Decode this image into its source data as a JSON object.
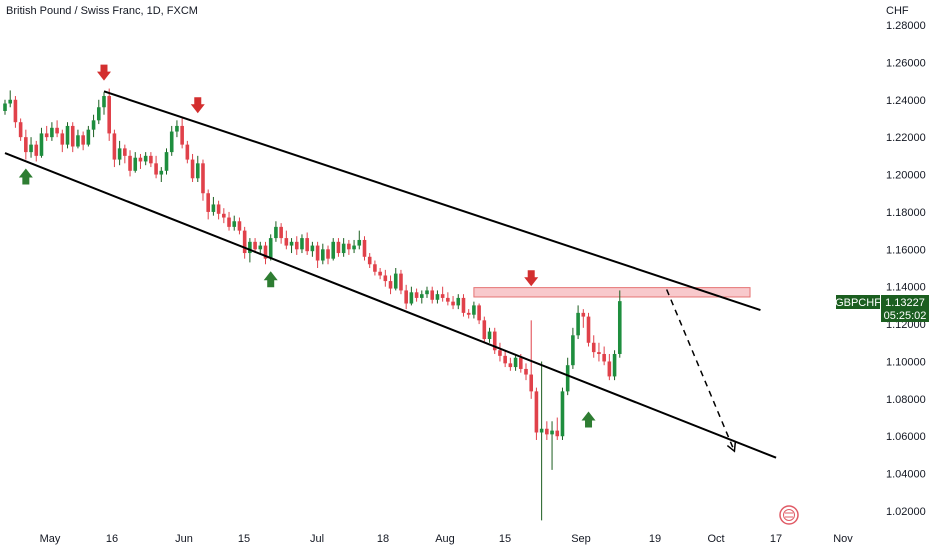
{
  "chart_title": "British Pound / Swiss Franc, 1D, FXCM",
  "chart_data": {
    "type": "candlestick",
    "title": "British Pound / Swiss Franc, 1D, FXCM",
    "price_unit": "CHF",
    "ylim": [
      1.01,
      1.29
    ],
    "y_ticks": [
      "1.28000",
      "1.26000",
      "1.24000",
      "1.22000",
      "1.20000",
      "1.18000",
      "1.16000",
      "1.14000",
      "1.12000",
      "1.10000",
      "1.08000",
      "1.06000",
      "1.04000",
      "1.02000"
    ],
    "x_ticks": [
      "May",
      "16",
      "Jun",
      "15",
      "Jul",
      "18",
      "Aug",
      "15",
      "Sep",
      "19",
      "Oct",
      "17",
      "Nov"
    ],
    "colors": {
      "up": "#26a69a",
      "down": "#ef5350",
      "up_wick": "#1b5e20",
      "arrow_up": "#2e7d32",
      "arrow_down": "#d32f2f",
      "zone": "#f8c9cc",
      "badge": "#1b5e20"
    },
    "candles": [
      {
        "o": 1.234,
        "h": 1.24,
        "l": 1.232,
        "c": 1.238
      },
      {
        "o": 1.238,
        "h": 1.245,
        "l": 1.236,
        "c": 1.24
      },
      {
        "o": 1.24,
        "h": 1.242,
        "l": 1.225,
        "c": 1.228
      },
      {
        "o": 1.228,
        "h": 1.23,
        "l": 1.218,
        "c": 1.22
      },
      {
        "o": 1.22,
        "h": 1.224,
        "l": 1.208,
        "c": 1.212
      },
      {
        "o": 1.212,
        "h": 1.22,
        "l": 1.209,
        "c": 1.216
      },
      {
        "o": 1.216,
        "h": 1.218,
        "l": 1.207,
        "c": 1.21
      },
      {
        "o": 1.21,
        "h": 1.225,
        "l": 1.209,
        "c": 1.222
      },
      {
        "o": 1.222,
        "h": 1.226,
        "l": 1.218,
        "c": 1.22
      },
      {
        "o": 1.22,
        "h": 1.228,
        "l": 1.218,
        "c": 1.225
      },
      {
        "o": 1.225,
        "h": 1.229,
        "l": 1.22,
        "c": 1.222
      },
      {
        "o": 1.222,
        "h": 1.224,
        "l": 1.212,
        "c": 1.216
      },
      {
        "o": 1.216,
        "h": 1.228,
        "l": 1.214,
        "c": 1.226
      },
      {
        "o": 1.226,
        "h": 1.228,
        "l": 1.212,
        "c": 1.215
      },
      {
        "o": 1.215,
        "h": 1.224,
        "l": 1.214,
        "c": 1.221
      },
      {
        "o": 1.221,
        "h": 1.223,
        "l": 1.213,
        "c": 1.216
      },
      {
        "o": 1.216,
        "h": 1.226,
        "l": 1.215,
        "c": 1.224
      },
      {
        "o": 1.224,
        "h": 1.232,
        "l": 1.22,
        "c": 1.229
      },
      {
        "o": 1.229,
        "h": 1.24,
        "l": 1.227,
        "c": 1.236
      },
      {
        "o": 1.236,
        "h": 1.244,
        "l": 1.232,
        "c": 1.242
      },
      {
        "o": 1.242,
        "h": 1.246,
        "l": 1.218,
        "c": 1.222
      },
      {
        "o": 1.222,
        "h": 1.224,
        "l": 1.204,
        "c": 1.208
      },
      {
        "o": 1.208,
        "h": 1.218,
        "l": 1.205,
        "c": 1.214
      },
      {
        "o": 1.214,
        "h": 1.216,
        "l": 1.206,
        "c": 1.21
      },
      {
        "o": 1.21,
        "h": 1.213,
        "l": 1.199,
        "c": 1.202
      },
      {
        "o": 1.202,
        "h": 1.212,
        "l": 1.201,
        "c": 1.209
      },
      {
        "o": 1.209,
        "h": 1.211,
        "l": 1.203,
        "c": 1.207
      },
      {
        "o": 1.207,
        "h": 1.212,
        "l": 1.205,
        "c": 1.21
      },
      {
        "o": 1.21,
        "h": 1.212,
        "l": 1.204,
        "c": 1.206
      },
      {
        "o": 1.206,
        "h": 1.21,
        "l": 1.198,
        "c": 1.2
      },
      {
        "o": 1.2,
        "h": 1.204,
        "l": 1.196,
        "c": 1.202
      },
      {
        "o": 1.202,
        "h": 1.214,
        "l": 1.2,
        "c": 1.212
      },
      {
        "o": 1.212,
        "h": 1.226,
        "l": 1.21,
        "c": 1.223
      },
      {
        "o": 1.223,
        "h": 1.229,
        "l": 1.22,
        "c": 1.226
      },
      {
        "o": 1.226,
        "h": 1.23,
        "l": 1.214,
        "c": 1.216
      },
      {
        "o": 1.216,
        "h": 1.218,
        "l": 1.206,
        "c": 1.208
      },
      {
        "o": 1.208,
        "h": 1.211,
        "l": 1.196,
        "c": 1.198
      },
      {
        "o": 1.198,
        "h": 1.21,
        "l": 1.196,
        "c": 1.206
      },
      {
        "o": 1.206,
        "h": 1.208,
        "l": 1.186,
        "c": 1.19
      },
      {
        "o": 1.19,
        "h": 1.192,
        "l": 1.176,
        "c": 1.18
      },
      {
        "o": 1.18,
        "h": 1.188,
        "l": 1.178,
        "c": 1.184
      },
      {
        "o": 1.184,
        "h": 1.186,
        "l": 1.176,
        "c": 1.179
      },
      {
        "o": 1.179,
        "h": 1.182,
        "l": 1.174,
        "c": 1.177
      },
      {
        "o": 1.177,
        "h": 1.18,
        "l": 1.17,
        "c": 1.172
      },
      {
        "o": 1.172,
        "h": 1.178,
        "l": 1.17,
        "c": 1.175
      },
      {
        "o": 1.175,
        "h": 1.177,
        "l": 1.168,
        "c": 1.17
      },
      {
        "o": 1.17,
        "h": 1.172,
        "l": 1.155,
        "c": 1.158
      },
      {
        "o": 1.158,
        "h": 1.166,
        "l": 1.153,
        "c": 1.164
      },
      {
        "o": 1.164,
        "h": 1.166,
        "l": 1.158,
        "c": 1.16
      },
      {
        "o": 1.16,
        "h": 1.164,
        "l": 1.157,
        "c": 1.162
      },
      {
        "o": 1.162,
        "h": 1.164,
        "l": 1.152,
        "c": 1.155
      },
      {
        "o": 1.155,
        "h": 1.168,
        "l": 1.154,
        "c": 1.166
      },
      {
        "o": 1.166,
        "h": 1.175,
        "l": 1.164,
        "c": 1.172
      },
      {
        "o": 1.172,
        "h": 1.174,
        "l": 1.163,
        "c": 1.166
      },
      {
        "o": 1.166,
        "h": 1.17,
        "l": 1.16,
        "c": 1.162
      },
      {
        "o": 1.162,
        "h": 1.166,
        "l": 1.158,
        "c": 1.164
      },
      {
        "o": 1.164,
        "h": 1.167,
        "l": 1.157,
        "c": 1.16
      },
      {
        "o": 1.16,
        "h": 1.168,
        "l": 1.158,
        "c": 1.166
      },
      {
        "o": 1.166,
        "h": 1.169,
        "l": 1.157,
        "c": 1.159
      },
      {
        "o": 1.159,
        "h": 1.164,
        "l": 1.156,
        "c": 1.162
      },
      {
        "o": 1.162,
        "h": 1.164,
        "l": 1.15,
        "c": 1.154
      },
      {
        "o": 1.154,
        "h": 1.163,
        "l": 1.152,
        "c": 1.16
      },
      {
        "o": 1.16,
        "h": 1.162,
        "l": 1.152,
        "c": 1.155
      },
      {
        "o": 1.155,
        "h": 1.166,
        "l": 1.154,
        "c": 1.164
      },
      {
        "o": 1.164,
        "h": 1.166,
        "l": 1.156,
        "c": 1.158
      },
      {
        "o": 1.158,
        "h": 1.166,
        "l": 1.156,
        "c": 1.163
      },
      {
        "o": 1.163,
        "h": 1.165,
        "l": 1.157,
        "c": 1.16
      },
      {
        "o": 1.16,
        "h": 1.165,
        "l": 1.158,
        "c": 1.162
      },
      {
        "o": 1.162,
        "h": 1.17,
        "l": 1.16,
        "c": 1.165
      },
      {
        "o": 1.165,
        "h": 1.167,
        "l": 1.154,
        "c": 1.156
      },
      {
        "o": 1.156,
        "h": 1.158,
        "l": 1.15,
        "c": 1.152
      },
      {
        "o": 1.152,
        "h": 1.154,
        "l": 1.146,
        "c": 1.148
      },
      {
        "o": 1.148,
        "h": 1.15,
        "l": 1.144,
        "c": 1.146
      },
      {
        "o": 1.146,
        "h": 1.149,
        "l": 1.14,
        "c": 1.143
      },
      {
        "o": 1.143,
        "h": 1.146,
        "l": 1.136,
        "c": 1.139
      },
      {
        "o": 1.139,
        "h": 1.15,
        "l": 1.138,
        "c": 1.147
      },
      {
        "o": 1.147,
        "h": 1.149,
        "l": 1.136,
        "c": 1.138
      },
      {
        "o": 1.138,
        "h": 1.141,
        "l": 1.128,
        "c": 1.131
      },
      {
        "o": 1.131,
        "h": 1.14,
        "l": 1.13,
        "c": 1.137
      },
      {
        "o": 1.137,
        "h": 1.139,
        "l": 1.132,
        "c": 1.134
      },
      {
        "o": 1.134,
        "h": 1.138,
        "l": 1.131,
        "c": 1.136
      },
      {
        "o": 1.136,
        "h": 1.14,
        "l": 1.134,
        "c": 1.138
      },
      {
        "o": 1.138,
        "h": 1.14,
        "l": 1.131,
        "c": 1.133
      },
      {
        "o": 1.133,
        "h": 1.138,
        "l": 1.131,
        "c": 1.136
      },
      {
        "o": 1.136,
        "h": 1.14,
        "l": 1.132,
        "c": 1.134
      },
      {
        "o": 1.134,
        "h": 1.137,
        "l": 1.13,
        "c": 1.132
      },
      {
        "o": 1.132,
        "h": 1.135,
        "l": 1.128,
        "c": 1.13
      },
      {
        "o": 1.13,
        "h": 1.136,
        "l": 1.128,
        "c": 1.134
      },
      {
        "o": 1.134,
        "h": 1.136,
        "l": 1.124,
        "c": 1.126
      },
      {
        "o": 1.126,
        "h": 1.128,
        "l": 1.123,
        "c": 1.125
      },
      {
        "o": 1.125,
        "h": 1.132,
        "l": 1.123,
        "c": 1.13
      },
      {
        "o": 1.13,
        "h": 1.131,
        "l": 1.12,
        "c": 1.122
      },
      {
        "o": 1.122,
        "h": 1.124,
        "l": 1.11,
        "c": 1.112
      },
      {
        "o": 1.112,
        "h": 1.118,
        "l": 1.11,
        "c": 1.116
      },
      {
        "o": 1.116,
        "h": 1.118,
        "l": 1.104,
        "c": 1.106
      },
      {
        "o": 1.106,
        "h": 1.11,
        "l": 1.1,
        "c": 1.103
      },
      {
        "o": 1.103,
        "h": 1.106,
        "l": 1.097,
        "c": 1.099
      },
      {
        "o": 1.099,
        "h": 1.102,
        "l": 1.095,
        "c": 1.097
      },
      {
        "o": 1.097,
        "h": 1.104,
        "l": 1.095,
        "c": 1.102
      },
      {
        "o": 1.102,
        "h": 1.104,
        "l": 1.094,
        "c": 1.096
      },
      {
        "o": 1.096,
        "h": 1.099,
        "l": 1.09,
        "c": 1.093
      },
      {
        "o": 1.093,
        "h": 1.122,
        "l": 1.08,
        "c": 1.084
      },
      {
        "o": 1.084,
        "h": 1.086,
        "l": 1.058,
        "c": 1.062
      },
      {
        "o": 1.062,
        "h": 1.1,
        "l": 1.015,
        "c": 1.064
      },
      {
        "o": 1.064,
        "h": 1.068,
        "l": 1.058,
        "c": 1.061
      },
      {
        "o": 1.061,
        "h": 1.068,
        "l": 1.042,
        "c": 1.063
      },
      {
        "o": 1.063,
        "h": 1.07,
        "l": 1.058,
        "c": 1.06
      },
      {
        "o": 1.06,
        "h": 1.086,
        "l": 1.058,
        "c": 1.084
      },
      {
        "o": 1.084,
        "h": 1.102,
        "l": 1.082,
        "c": 1.098
      },
      {
        "o": 1.098,
        "h": 1.118,
        "l": 1.096,
        "c": 1.114
      },
      {
        "o": 1.114,
        "h": 1.13,
        "l": 1.112,
        "c": 1.126
      },
      {
        "o": 1.126,
        "h": 1.128,
        "l": 1.118,
        "c": 1.124
      },
      {
        "o": 1.124,
        "h": 1.126,
        "l": 1.108,
        "c": 1.11
      },
      {
        "o": 1.11,
        "h": 1.114,
        "l": 1.102,
        "c": 1.105
      },
      {
        "o": 1.105,
        "h": 1.11,
        "l": 1.1,
        "c": 1.104
      },
      {
        "o": 1.104,
        "h": 1.108,
        "l": 1.098,
        "c": 1.1
      },
      {
        "o": 1.1,
        "h": 1.104,
        "l": 1.09,
        "c": 1.092
      },
      {
        "o": 1.092,
        "h": 1.106,
        "l": 1.09,
        "c": 1.104
      },
      {
        "o": 1.104,
        "h": 1.138,
        "l": 1.102,
        "c": 1.13227
      }
    ],
    "channel": {
      "upper": [
        {
          "day": 19,
          "price": 1.2445
        },
        {
          "day": 145,
          "price": 1.1275
        }
      ],
      "lower": [
        {
          "day": 0,
          "price": 1.2115
        },
        {
          "day": 148,
          "price": 1.0485
        }
      ]
    },
    "resistance_zone": {
      "from_day": 90,
      "to_day": 143,
      "low": 1.1345,
      "high": 1.1395
    },
    "projection": [
      {
        "day": 127,
        "price": 1.1385
      },
      {
        "day": 140,
        "price": 1.052
      }
    ],
    "markers": [
      {
        "type": "down",
        "day": 19,
        "price": 1.254
      },
      {
        "type": "down",
        "day": 37,
        "price": 1.2365
      },
      {
        "type": "down",
        "day": 101,
        "price": 1.144
      },
      {
        "type": "up",
        "day": 4,
        "price": 1.1995
      },
      {
        "type": "up",
        "day": 51,
        "price": 1.1445
      },
      {
        "type": "up",
        "day": 112,
        "price": 1.0695
      }
    ],
    "last_price": {
      "symbol": "GBPCHF",
      "value": "1.13227",
      "countdown": "05:25:02"
    }
  }
}
